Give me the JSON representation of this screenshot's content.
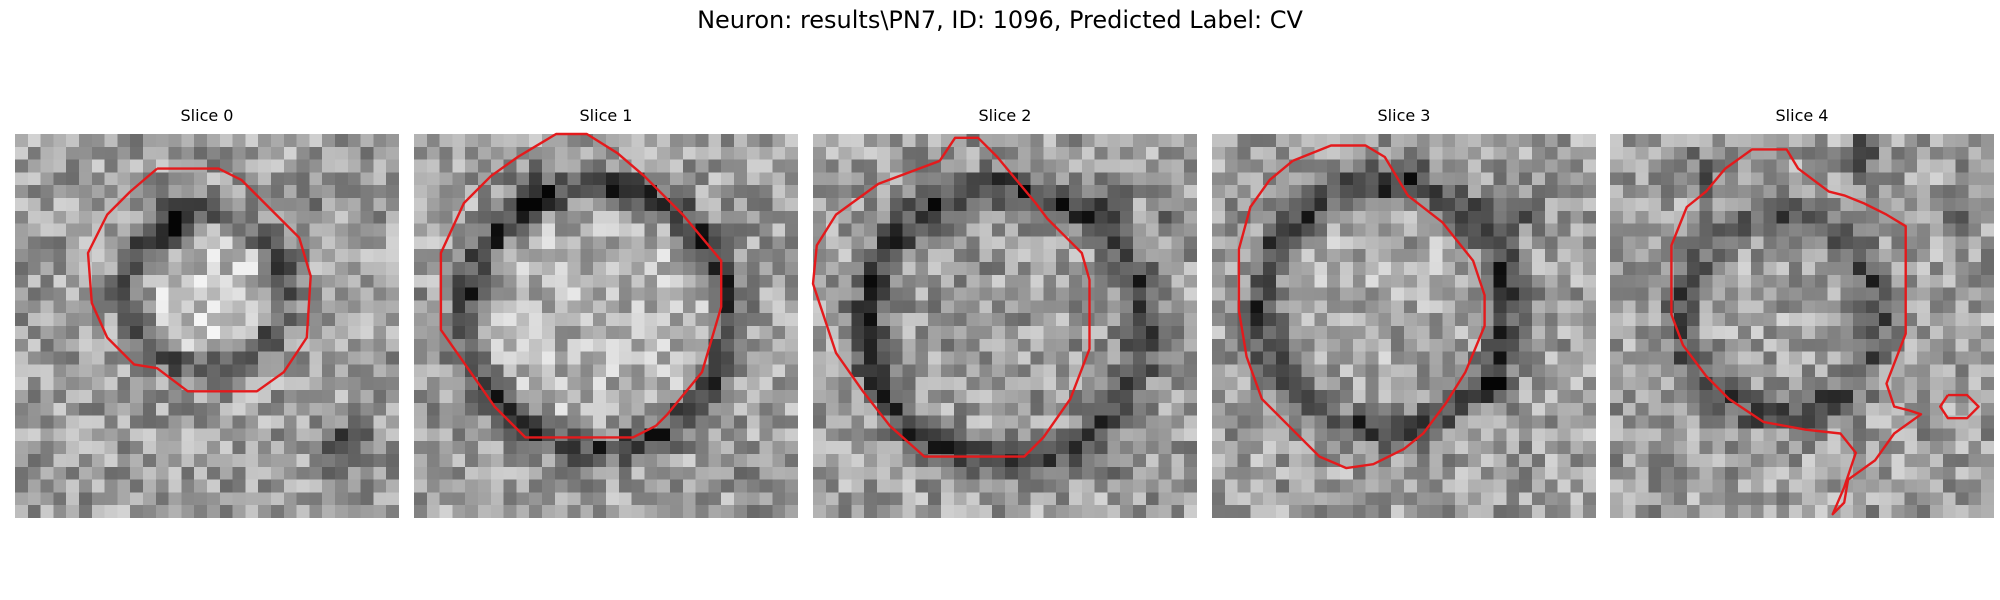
{
  "figure": {
    "title": "Neuron: results\\PN7, ID: 1096, Predicted Label: CV",
    "contour_color": "#e41a1c",
    "colormap": "grayscale",
    "grid_size": 30
  },
  "slices": [
    {
      "label": "Slice 0",
      "center": [
        0.5,
        0.41
      ],
      "radius": 0.2,
      "dark_ring": [
        0.26,
        0.9
      ],
      "blobs": [
        [
          0.4,
          0.25,
          0.06,
          0.35
        ],
        [
          0.87,
          0.82,
          0.06,
          0.45
        ],
        [
          0.75,
          0.2,
          0.05,
          0.15
        ]
      ],
      "contour": [
        [
          0.37,
          0.09
        ],
        [
          0.53,
          0.09
        ],
        [
          0.59,
          0.12
        ],
        [
          0.74,
          0.27
        ],
        [
          0.77,
          0.37
        ],
        [
          0.76,
          0.53
        ],
        [
          0.7,
          0.62
        ],
        [
          0.63,
          0.67
        ],
        [
          0.45,
          0.67
        ],
        [
          0.37,
          0.61
        ],
        [
          0.31,
          0.6
        ],
        [
          0.24,
          0.53
        ],
        [
          0.2,
          0.44
        ],
        [
          0.19,
          0.31
        ],
        [
          0.24,
          0.21
        ],
        [
          0.3,
          0.15
        ]
      ]
    },
    {
      "label": "Slice 1",
      "center": [
        0.48,
        0.48
      ],
      "radius": 0.34,
      "dark_ring": [
        0.38,
        0.8
      ],
      "blobs": [
        [
          0.3,
          0.14,
          0.04,
          0.45
        ],
        [
          0.9,
          0.9,
          0.05,
          0.15
        ]
      ],
      "contour": [
        [
          0.27,
          0.06
        ],
        [
          0.37,
          0.0
        ],
        [
          0.45,
          0.0
        ],
        [
          0.53,
          0.05
        ],
        [
          0.6,
          0.11
        ],
        [
          0.7,
          0.21
        ],
        [
          0.8,
          0.33
        ],
        [
          0.8,
          0.45
        ],
        [
          0.75,
          0.62
        ],
        [
          0.66,
          0.73
        ],
        [
          0.63,
          0.76
        ],
        [
          0.57,
          0.79
        ],
        [
          0.29,
          0.79
        ],
        [
          0.21,
          0.71
        ],
        [
          0.14,
          0.61
        ],
        [
          0.07,
          0.51
        ],
        [
          0.07,
          0.31
        ],
        [
          0.13,
          0.18
        ],
        [
          0.2,
          0.11
        ]
      ]
    },
    {
      "label": "Slice 2",
      "center": [
        0.5,
        0.5
      ],
      "radius": 0.36,
      "dark_ring": [
        0.4,
        0.6
      ],
      "blobs": [
        [
          0.78,
          0.17,
          0.04,
          0.3
        ],
        [
          0.81,
          0.86,
          0.04,
          0.2
        ],
        [
          0.92,
          0.2,
          0.04,
          0.2
        ]
      ],
      "contour": [
        [
          0.33,
          0.07
        ],
        [
          0.37,
          0.01
        ],
        [
          0.43,
          0.01
        ],
        [
          0.48,
          0.06
        ],
        [
          0.53,
          0.12
        ],
        [
          0.58,
          0.18
        ],
        [
          0.61,
          0.22
        ],
        [
          0.66,
          0.27
        ],
        [
          0.7,
          0.31
        ],
        [
          0.72,
          0.38
        ],
        [
          0.72,
          0.56
        ],
        [
          0.67,
          0.69
        ],
        [
          0.6,
          0.79
        ],
        [
          0.55,
          0.84
        ],
        [
          0.29,
          0.84
        ],
        [
          0.2,
          0.76
        ],
        [
          0.13,
          0.67
        ],
        [
          0.06,
          0.57
        ],
        [
          0.0,
          0.39
        ],
        [
          0.01,
          0.29
        ],
        [
          0.06,
          0.21
        ],
        [
          0.17,
          0.13
        ]
      ]
    },
    {
      "label": "Slice 3",
      "center": [
        0.45,
        0.45
      ],
      "radius": 0.32,
      "dark_ring": [
        0.37,
        0.7
      ],
      "blobs": [
        [
          0.74,
          0.67,
          0.04,
          0.35
        ],
        [
          0.52,
          0.12,
          0.05,
          0.15
        ],
        [
          0.8,
          0.2,
          0.06,
          0.2
        ]
      ],
      "contour": [
        [
          0.21,
          0.07
        ],
        [
          0.31,
          0.03
        ],
        [
          0.4,
          0.03
        ],
        [
          0.45,
          0.06
        ],
        [
          0.51,
          0.16
        ],
        [
          0.6,
          0.23
        ],
        [
          0.68,
          0.33
        ],
        [
          0.71,
          0.42
        ],
        [
          0.71,
          0.5
        ],
        [
          0.66,
          0.62
        ],
        [
          0.61,
          0.7
        ],
        [
          0.55,
          0.78
        ],
        [
          0.5,
          0.82
        ],
        [
          0.42,
          0.86
        ],
        [
          0.35,
          0.87
        ],
        [
          0.28,
          0.84
        ],
        [
          0.21,
          0.77
        ],
        [
          0.13,
          0.69
        ],
        [
          0.09,
          0.58
        ],
        [
          0.07,
          0.46
        ],
        [
          0.07,
          0.3
        ],
        [
          0.1,
          0.19
        ],
        [
          0.15,
          0.12
        ]
      ]
    },
    {
      "label": "Slice 4",
      "center": [
        0.44,
        0.47
      ],
      "radius": 0.26,
      "dark_ring": [
        0.31,
        0.65
      ],
      "blobs": [
        [
          0.66,
          0.05,
          0.04,
          0.45
        ],
        [
          0.93,
          0.2,
          0.05,
          0.15
        ],
        [
          0.25,
          0.1,
          0.06,
          0.2
        ]
      ],
      "contour": [
        [
          0.3,
          0.09
        ],
        [
          0.37,
          0.04
        ],
        [
          0.46,
          0.04
        ],
        [
          0.49,
          0.09
        ],
        [
          0.53,
          0.12
        ],
        [
          0.57,
          0.15
        ],
        [
          0.61,
          0.16
        ],
        [
          0.66,
          0.18
        ],
        [
          0.72,
          0.21
        ],
        [
          0.77,
          0.24
        ],
        [
          0.77,
          0.52
        ],
        [
          0.72,
          0.65
        ],
        [
          0.74,
          0.71
        ],
        [
          0.78,
          0.72
        ],
        [
          0.81,
          0.73
        ],
        [
          0.74,
          0.78
        ],
        [
          0.69,
          0.85
        ],
        [
          0.62,
          0.9
        ],
        [
          0.61,
          0.96
        ],
        [
          0.58,
          0.99
        ],
        [
          0.61,
          0.92
        ],
        [
          0.64,
          0.83
        ],
        [
          0.6,
          0.78
        ],
        [
          0.51,
          0.77
        ],
        [
          0.4,
          0.75
        ],
        [
          0.31,
          0.69
        ],
        [
          0.25,
          0.63
        ],
        [
          0.19,
          0.55
        ],
        [
          0.16,
          0.47
        ],
        [
          0.16,
          0.29
        ],
        [
          0.2,
          0.19
        ],
        [
          0.25,
          0.15
        ]
      ],
      "extra_contour": [
        [
          0.88,
          0.68
        ],
        [
          0.93,
          0.68
        ],
        [
          0.96,
          0.71
        ],
        [
          0.93,
          0.74
        ],
        [
          0.88,
          0.74
        ],
        [
          0.86,
          0.71
        ]
      ]
    }
  ]
}
